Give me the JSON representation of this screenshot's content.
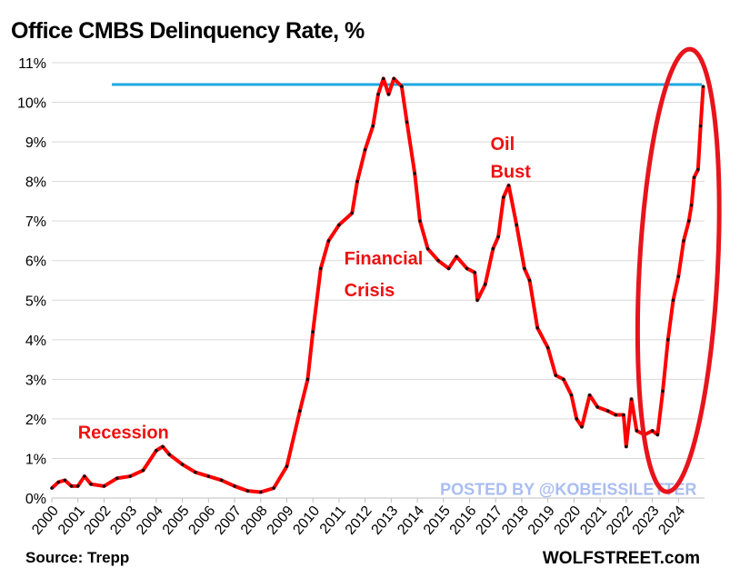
{
  "chart_data": {
    "type": "line",
    "title": "Office CMBS Delinquency Rate, %",
    "source": "Source: Trepp",
    "brand": "WOLFSTREET.com",
    "watermark": "POSTED BY @KOBEISSILETTER",
    "xlabel": "",
    "ylabel": "",
    "xlim": [
      2000,
      2025
    ],
    "ylim": [
      0,
      11
    ],
    "x_ticks": [
      "2000",
      "2001",
      "2002",
      "2003",
      "2004",
      "2005",
      "2006",
      "2007",
      "2008",
      "2009",
      "2010",
      "2011",
      "2012",
      "2013",
      "2014",
      "2015",
      "2016",
      "2017",
      "2018",
      "2019",
      "2020",
      "2021",
      "2022",
      "2023",
      "2024"
    ],
    "y_ticks": [
      "0%",
      "1%",
      "2%",
      "3%",
      "4%",
      "5%",
      "6%",
      "7%",
      "8%",
      "9%",
      "10%",
      "11%"
    ],
    "grid": true,
    "series": [
      {
        "name": "Office CMBS Delinquency Rate",
        "color": "#ff0000",
        "x": [
          2000.0,
          2000.25,
          2000.5,
          2000.75,
          2001.0,
          2001.25,
          2001.5,
          2002.0,
          2002.5,
          2003.0,
          2003.5,
          2004.0,
          2004.25,
          2004.5,
          2005.0,
          2005.5,
          2006.0,
          2006.5,
          2007.0,
          2007.5,
          2008.0,
          2008.5,
          2009.0,
          2009.5,
          2009.8,
          2010.0,
          2010.3,
          2010.6,
          2011.0,
          2011.5,
          2011.7,
          2012.0,
          2012.3,
          2012.5,
          2012.7,
          2012.9,
          2013.1,
          2013.4,
          2013.6,
          2013.9,
          2014.1,
          2014.4,
          2014.8,
          2015.2,
          2015.5,
          2015.9,
          2016.2,
          2016.3,
          2016.6,
          2016.9,
          2017.1,
          2017.3,
          2017.5,
          2017.8,
          2018.1,
          2018.3,
          2018.6,
          2019.0,
          2019.3,
          2019.6,
          2019.9,
          2020.1,
          2020.3,
          2020.6,
          2020.9,
          2021.3,
          2021.6,
          2021.9,
          2022.0,
          2022.2,
          2022.4,
          2022.7,
          2023.0,
          2023.2,
          2023.4,
          2023.6,
          2023.8,
          2024.0,
          2024.2,
          2024.4,
          2024.5,
          2024.6,
          2024.75,
          2024.85,
          2024.95
        ],
        "values": [
          0.25,
          0.4,
          0.45,
          0.3,
          0.3,
          0.55,
          0.35,
          0.3,
          0.5,
          0.55,
          0.7,
          1.2,
          1.3,
          1.1,
          0.85,
          0.65,
          0.55,
          0.45,
          0.3,
          0.18,
          0.15,
          0.25,
          0.8,
          2.2,
          3.0,
          4.2,
          5.8,
          6.5,
          6.9,
          7.2,
          8.0,
          8.8,
          9.4,
          10.2,
          10.6,
          10.2,
          10.6,
          10.4,
          9.5,
          8.2,
          7.0,
          6.3,
          6.0,
          5.8,
          6.1,
          5.8,
          5.7,
          5.0,
          5.4,
          6.3,
          6.6,
          7.6,
          7.9,
          6.9,
          5.8,
          5.5,
          4.3,
          3.8,
          3.1,
          3.0,
          2.6,
          2.0,
          1.8,
          2.6,
          2.3,
          2.2,
          2.1,
          2.1,
          1.3,
          2.5,
          1.7,
          1.6,
          1.7,
          1.6,
          2.7,
          4.0,
          5.0,
          5.6,
          6.5,
          7.0,
          7.4,
          8.1,
          8.3,
          9.4,
          10.4
        ]
      }
    ],
    "reference_line": {
      "value": 10.45,
      "from": 2002.3,
      "to": 2024.9,
      "color": "#1fa8e0"
    },
    "annotations": [
      {
        "text": "Recession",
        "x": 2001.0,
        "y": 1.5
      },
      {
        "text": "Financial",
        "x": 2011.2,
        "y": 5.9
      },
      {
        "text": "Crisis",
        "x": 2011.2,
        "y": 5.1
      },
      {
        "text": "Oil",
        "x": 2016.8,
        "y": 8.8
      },
      {
        "text": "Bust",
        "x": 2016.8,
        "y": 8.1
      }
    ],
    "highlight_ellipse": {
      "cx": 2024.0,
      "cy": 5.75,
      "rx_years": 1.5,
      "ry_pct": 5.6,
      "color": "#e8141c"
    }
  }
}
